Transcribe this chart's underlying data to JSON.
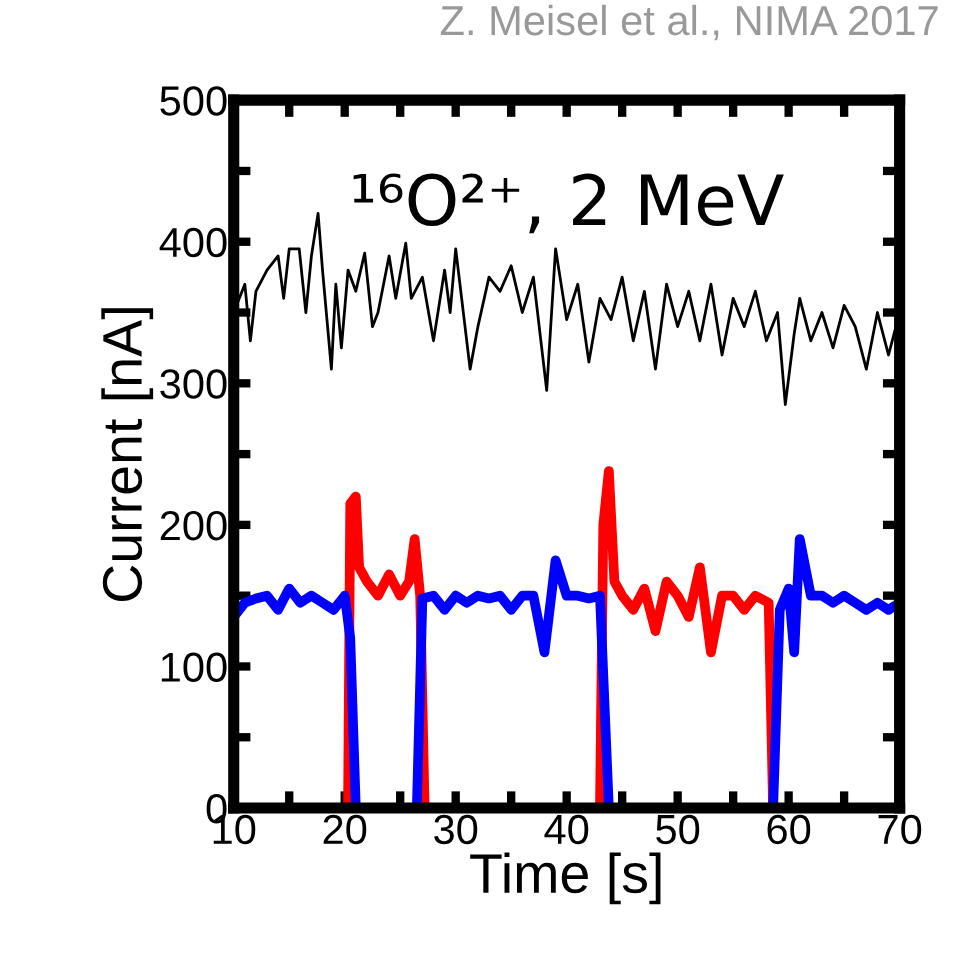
{
  "chart_data": {
    "type": "line",
    "title": "¹⁶O²⁺, 2 MeV",
    "xlabel": "Time [s]",
    "ylabel": "Current [nA]",
    "annotations": [
      "Z. Meisel et al., NIMA 2017"
    ],
    "xlim": [
      10,
      70
    ],
    "ylim": [
      0,
      500
    ],
    "xticks": [
      10,
      {
        "value": 15,
        "label": null
      },
      20,
      {
        "value": 25,
        "label": null
      },
      30,
      {
        "value": 35,
        "label": null
      },
      40,
      {
        "value": 45,
        "label": null
      },
      50,
      {
        "value": 55,
        "label": null
      },
      60,
      {
        "value": 65,
        "label": null
      },
      70
    ],
    "yticks": [
      0,
      {
        "value": 50,
        "label": null
      },
      100,
      {
        "value": 150,
        "label": null
      },
      200,
      {
        "value": 250,
        "label": null
      },
      300,
      {
        "value": 350,
        "label": null
      },
      400,
      {
        "value": 450,
        "label": null
      },
      500
    ],
    "grid": false,
    "legend": false,
    "series": [
      {
        "color": "#000000",
        "x": [
          10,
          11,
          11.5,
          12,
          13,
          14,
          14.5,
          15,
          15.9,
          16.5,
          17,
          17.6,
          18,
          18.8,
          19.2,
          19.7,
          20.3,
          21,
          21.8,
          22.5,
          23,
          24,
          24.6,
          25.5,
          26,
          27,
          28,
          29,
          29.5,
          30,
          31.3,
          32,
          33,
          34,
          35,
          36,
          37,
          38.2,
          39,
          40,
          41,
          42,
          43,
          44,
          45,
          46,
          47,
          48,
          49,
          50,
          51,
          52,
          53,
          54,
          55,
          56,
          57,
          58,
          59,
          59.7,
          60.5,
          61,
          62,
          63,
          64,
          65,
          66,
          67,
          68,
          69,
          70
        ],
        "values": [
          350,
          370,
          330,
          365,
          380,
          390,
          360,
          395,
          395,
          350,
          390,
          420,
          380,
          310,
          370,
          325,
          380,
          365,
          392,
          340,
          350,
          390,
          360,
          399,
          360,
          375,
          330,
          380,
          350,
          395,
          310,
          340,
          375,
          365,
          383,
          350,
          375,
          295,
          395,
          345,
          370,
          315,
          360,
          345,
          375,
          330,
          365,
          310,
          370,
          340,
          365,
          330,
          370,
          320,
          360,
          340,
          365,
          330,
          350,
          285,
          335,
          360,
          330,
          350,
          325,
          355,
          340,
          310,
          350,
          320,
          350
        ]
      },
      {
        "color": "#ff0000",
        "x": [
          10,
          20.3,
          20.5,
          21,
          21.3,
          22,
          23,
          24,
          25,
          25.8,
          26.3,
          26.8,
          27.2,
          43,
          43.3,
          43.8,
          44.3,
          45,
          46,
          47,
          48,
          49,
          50,
          51,
          52,
          53,
          54,
          55,
          56,
          57,
          58.2,
          58.6,
          70
        ],
        "values": [
          0,
          0,
          215,
          220,
          170,
          160,
          150,
          165,
          150,
          160,
          190,
          150,
          0,
          0,
          200,
          238,
          160,
          150,
          140,
          155,
          125,
          160,
          150,
          135,
          170,
          110,
          150,
          150,
          140,
          150,
          145,
          0,
          0
        ]
      },
      {
        "color": "#0000ff",
        "x": [
          10,
          11,
          12,
          13,
          14,
          15,
          16,
          17,
          18,
          19,
          20,
          20.5,
          21,
          26.5,
          27,
          28,
          29,
          30,
          31,
          32,
          33,
          34,
          35,
          36,
          37,
          38,
          39,
          40,
          41,
          42,
          43,
          43.8,
          58.6,
          59.2,
          60,
          60.5,
          61,
          62,
          63,
          64,
          65,
          66,
          67,
          68,
          69,
          70
        ],
        "values": [
          135,
          145,
          148,
          150,
          140,
          155,
          145,
          150,
          145,
          140,
          150,
          120,
          0,
          0,
          148,
          150,
          140,
          150,
          145,
          150,
          148,
          150,
          140,
          150,
          150,
          110,
          175,
          150,
          150,
          148,
          150,
          0,
          0,
          140,
          155,
          110,
          190,
          150,
          150,
          145,
          150,
          145,
          140,
          145,
          140,
          145
        ]
      }
    ]
  }
}
